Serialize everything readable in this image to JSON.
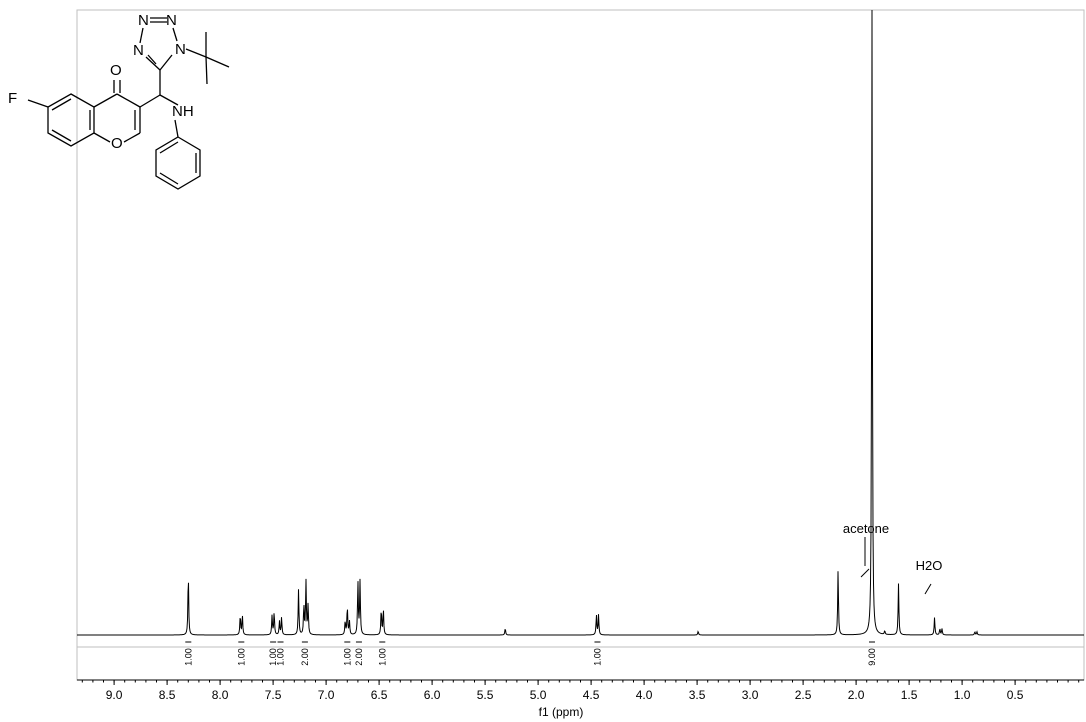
{
  "chart_data": {
    "type": "line",
    "xlabel": "f1 (ppm)",
    "xlim": [
      9.35,
      -0.15
    ],
    "x_reversed": true,
    "x_ticks": [
      "9.0",
      "8.5",
      "8.0",
      "7.5",
      "7.0",
      "6.5",
      "6.0",
      "5.5",
      "5.0",
      "4.5",
      "4.0",
      "3.5",
      "3.0",
      "2.5",
      "2.0",
      "1.5",
      "1.0",
      "0.5"
    ],
    "ylim": [
      0,
      1.0
    ],
    "ylabel": "",
    "grid": false,
    "peaks": [
      {
        "ppm": 8.3,
        "height": 0.1
      },
      {
        "ppm": 7.81,
        "height": 0.032
      },
      {
        "ppm": 7.79,
        "height": 0.032
      },
      {
        "ppm": 7.51,
        "height": 0.031
      },
      {
        "ppm": 7.49,
        "height": 0.037
      },
      {
        "ppm": 7.44,
        "height": 0.022
      },
      {
        "ppm": 7.42,
        "height": 0.028
      },
      {
        "ppm": 7.26,
        "height": 0.073
      },
      {
        "ppm": 7.21,
        "height": 0.048
      },
      {
        "ppm": 7.19,
        "height": 0.086
      },
      {
        "ppm": 7.17,
        "height": 0.048
      },
      {
        "ppm": 6.82,
        "height": 0.022
      },
      {
        "ppm": 6.8,
        "height": 0.046
      },
      {
        "ppm": 6.78,
        "height": 0.022
      },
      {
        "ppm": 6.7,
        "height": 0.086
      },
      {
        "ppm": 6.68,
        "height": 0.086
      },
      {
        "ppm": 6.48,
        "height": 0.042
      },
      {
        "ppm": 6.46,
        "height": 0.042
      },
      {
        "ppm": 5.31,
        "height": 0.011
      },
      {
        "ppm": 4.45,
        "height": 0.032
      },
      {
        "ppm": 4.43,
        "height": 0.032
      },
      {
        "ppm": 3.49,
        "height": 0.006
      },
      {
        "ppm": 2.17,
        "height": 0.105
      },
      {
        "ppm": 1.85,
        "height": 1.0
      },
      {
        "ppm": 1.73,
        "height": 0.006
      },
      {
        "ppm": 1.6,
        "height": 0.082
      },
      {
        "ppm": 1.26,
        "height": 0.028
      },
      {
        "ppm": 1.21,
        "height": 0.01
      },
      {
        "ppm": 1.19,
        "height": 0.01
      },
      {
        "ppm": 0.88,
        "height": 0.005
      },
      {
        "ppm": 0.86,
        "height": 0.005
      }
    ],
    "integrals": [
      {
        "ppm": 8.3,
        "label": "1.00"
      },
      {
        "ppm": 7.8,
        "label": "1.00"
      },
      {
        "ppm": 7.5,
        "label": "1.00"
      },
      {
        "ppm": 7.43,
        "label": "1.00"
      },
      {
        "ppm": 7.2,
        "label": "2.00"
      },
      {
        "ppm": 6.8,
        "label": "1.00"
      },
      {
        "ppm": 6.69,
        "label": "2.00"
      },
      {
        "ppm": 6.47,
        "label": "1.00"
      },
      {
        "ppm": 4.44,
        "label": "1.00"
      },
      {
        "ppm": 1.85,
        "label": "9.00"
      }
    ],
    "annotations": [
      {
        "ppm": 2.17,
        "text": "acetone"
      },
      {
        "ppm": 1.6,
        "text": "H2O"
      }
    ],
    "colors": {
      "spectrum": "#000000",
      "axis": "#000000",
      "frame": "#bfbfbf"
    }
  },
  "structure": {
    "atoms": {
      "F": "F",
      "O_carbonyl": "O",
      "O_ring": "O",
      "NH": "NH",
      "N1": "N",
      "N2": "N",
      "N3": "N",
      "N4": "N"
    }
  }
}
